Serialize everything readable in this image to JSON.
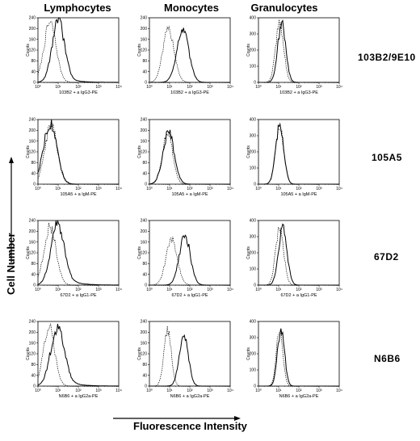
{
  "chart_data": {
    "type": "line",
    "column_titles": [
      "Lymphocytes",
      "Monocytes",
      "Granulocytes"
    ],
    "row_titles": [
      "103B2/9E10",
      "105A5",
      "67D2",
      "N6B6"
    ],
    "ylabel": "Cell Number",
    "xlabel": "Fluorescence Intensity",
    "panel_ylabel": "Counts",
    "xscale": "log",
    "xlim": [
      1,
      10000
    ],
    "x_ticks": [
      "10⁰",
      "10¹",
      "10²",
      "10³",
      "10⁴"
    ],
    "panels": [
      {
        "row": 0,
        "col": 0,
        "caption": "103B2 + a IgG3-PE",
        "yticks": [
          "0",
          "40",
          "80",
          "120",
          "160",
          "200",
          "240"
        ],
        "ymax": 240,
        "series": [
          {
            "style": "dashed",
            "peak_log10": 0.6,
            "sd": 0.3,
            "height": 0.92,
            "tail": 0
          },
          {
            "style": "solid",
            "peak_log10": 1.0,
            "sd": 0.3,
            "height": 0.95,
            "tail": 0.12
          }
        ]
      },
      {
        "row": 0,
        "col": 1,
        "caption": "103B2 + a IgG3-PE",
        "yticks": [
          "0",
          "40",
          "80",
          "120",
          "160",
          "200",
          "240"
        ],
        "ymax": 240,
        "series": [
          {
            "style": "dashed",
            "peak_log10": 0.95,
            "sd": 0.28,
            "height": 0.82,
            "tail": 0
          },
          {
            "style": "solid",
            "peak_log10": 1.65,
            "sd": 0.3,
            "height": 0.8,
            "tail": 0
          }
        ]
      },
      {
        "row": 0,
        "col": 2,
        "caption": "103B2 + a IgG3-PE",
        "yticks": [
          "0",
          "100",
          "200",
          "300",
          "400"
        ],
        "ymax": 400,
        "series": [
          {
            "style": "dashed",
            "peak_log10": 1.05,
            "sd": 0.2,
            "height": 0.9,
            "tail": 0
          },
          {
            "style": "solid",
            "peak_log10": 1.15,
            "sd": 0.2,
            "height": 0.9,
            "tail": 0
          }
        ]
      },
      {
        "row": 1,
        "col": 0,
        "caption": "105A5 + a IgM-PE",
        "yticks": [
          "0",
          "40",
          "80",
          "120",
          "160",
          "200",
          "240"
        ],
        "ymax": 240,
        "series": [
          {
            "style": "dashed",
            "peak_log10": 0.65,
            "sd": 0.3,
            "height": 0.93,
            "tail": 0
          },
          {
            "style": "solid",
            "peak_log10": 0.6,
            "sd": 0.33,
            "height": 0.95,
            "tail": 0
          }
        ]
      },
      {
        "row": 1,
        "col": 1,
        "caption": "105A5 + a IgM-PE",
        "yticks": [
          "0",
          "40",
          "80",
          "120",
          "160",
          "200",
          "240"
        ],
        "ymax": 240,
        "series": [
          {
            "style": "dashed",
            "peak_log10": 0.9,
            "sd": 0.25,
            "height": 0.8,
            "tail": 0
          },
          {
            "style": "solid",
            "peak_log10": 0.95,
            "sd": 0.28,
            "height": 0.8,
            "tail": 0
          }
        ]
      },
      {
        "row": 1,
        "col": 2,
        "caption": "105A5 + a IgM-PE",
        "yticks": [
          "0",
          "100",
          "200",
          "300",
          "400"
        ],
        "ymax": 400,
        "series": [
          {
            "style": "dashed",
            "peak_log10": 1.05,
            "sd": 0.2,
            "height": 0.9,
            "tail": 0
          },
          {
            "style": "solid",
            "peak_log10": 1.05,
            "sd": 0.2,
            "height": 0.9,
            "tail": 0
          }
        ]
      },
      {
        "row": 2,
        "col": 0,
        "caption": "67D2 + a IgG1-PE",
        "yticks": [
          "0",
          "40",
          "80",
          "120",
          "160",
          "200",
          "240"
        ],
        "ymax": 240,
        "series": [
          {
            "style": "dashed",
            "peak_log10": 0.6,
            "sd": 0.3,
            "height": 0.9,
            "tail": 0
          },
          {
            "style": "solid",
            "peak_log10": 0.95,
            "sd": 0.32,
            "height": 0.92,
            "tail": 0.22
          }
        ]
      },
      {
        "row": 2,
        "col": 1,
        "caption": "67D2 + a IgG1-PE",
        "yticks": [
          "0",
          "40",
          "80",
          "120",
          "160",
          "200",
          "240"
        ],
        "ymax": 240,
        "series": [
          {
            "style": "dashed",
            "peak_log10": 1.1,
            "sd": 0.28,
            "height": 0.7,
            "tail": 0
          },
          {
            "style": "solid",
            "peak_log10": 1.75,
            "sd": 0.27,
            "height": 0.78,
            "tail": 0
          }
        ]
      },
      {
        "row": 2,
        "col": 2,
        "caption": "67D2 + a IgG1-PE",
        "yticks": [
          "0",
          "100",
          "200",
          "300",
          "400"
        ],
        "ymax": 400,
        "series": [
          {
            "style": "dashed",
            "peak_log10": 1.05,
            "sd": 0.2,
            "height": 0.88,
            "tail": 0
          },
          {
            "style": "solid",
            "peak_log10": 1.2,
            "sd": 0.21,
            "height": 0.88,
            "tail": 0
          }
        ]
      },
      {
        "row": 3,
        "col": 0,
        "caption": "N6B6 + a IgG2a-PE",
        "yticks": [
          "0",
          "40",
          "80",
          "120",
          "160",
          "200",
          "240"
        ],
        "ymax": 240,
        "series": [
          {
            "style": "dashed",
            "peak_log10": 0.55,
            "sd": 0.28,
            "height": 0.92,
            "tail": 0
          },
          {
            "style": "solid",
            "peak_log10": 0.95,
            "sd": 0.33,
            "height": 0.88,
            "tail": 0.18
          }
        ]
      },
      {
        "row": 3,
        "col": 1,
        "caption": "N6B6 + a IgG2a-PE",
        "yticks": [
          "0",
          "40",
          "80",
          "120",
          "160",
          "200",
          "240"
        ],
        "ymax": 240,
        "series": [
          {
            "style": "dashed",
            "peak_log10": 0.9,
            "sd": 0.18,
            "height": 0.88,
            "tail": 0
          },
          {
            "style": "solid",
            "peak_log10": 1.7,
            "sd": 0.22,
            "height": 0.82,
            "tail": 0
          }
        ]
      },
      {
        "row": 3,
        "col": 2,
        "caption": "N6B6 + a IgG2a-PE",
        "yticks": [
          "0",
          "100",
          "200",
          "300",
          "400"
        ],
        "ymax": 400,
        "series": [
          {
            "style": "dashed",
            "peak_log10": 1.05,
            "sd": 0.16,
            "height": 0.9,
            "tail": 0
          },
          {
            "style": "solid",
            "peak_log10": 1.12,
            "sd": 0.17,
            "height": 0.9,
            "tail": 0
          }
        ]
      }
    ],
    "grid": false,
    "legend": "none"
  }
}
